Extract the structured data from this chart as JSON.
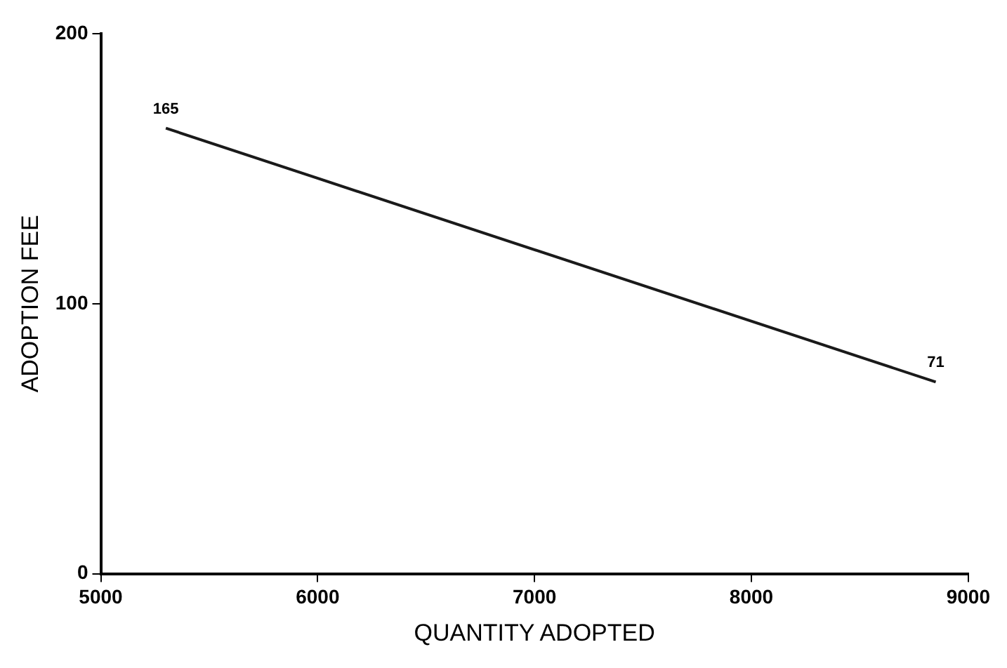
{
  "chart_data": {
    "type": "line",
    "xlabel": "QUANTITY ADOPTED",
    "ylabel": "ADOPTION FEE",
    "x": [
      5300,
      8850
    ],
    "series": [
      {
        "color": "#1a1a1a",
        "values": [
          165,
          71
        ]
      }
    ],
    "xlim": [
      5000,
      9000
    ],
    "xticks": [
      5000,
      6000,
      7000,
      8000,
      9000
    ],
    "ylim": [
      0,
      200
    ],
    "yticks": [
      0,
      100,
      200
    ],
    "grid": false,
    "legend": false,
    "marker": "none",
    "line_style": "solid",
    "data_labels": true
  }
}
